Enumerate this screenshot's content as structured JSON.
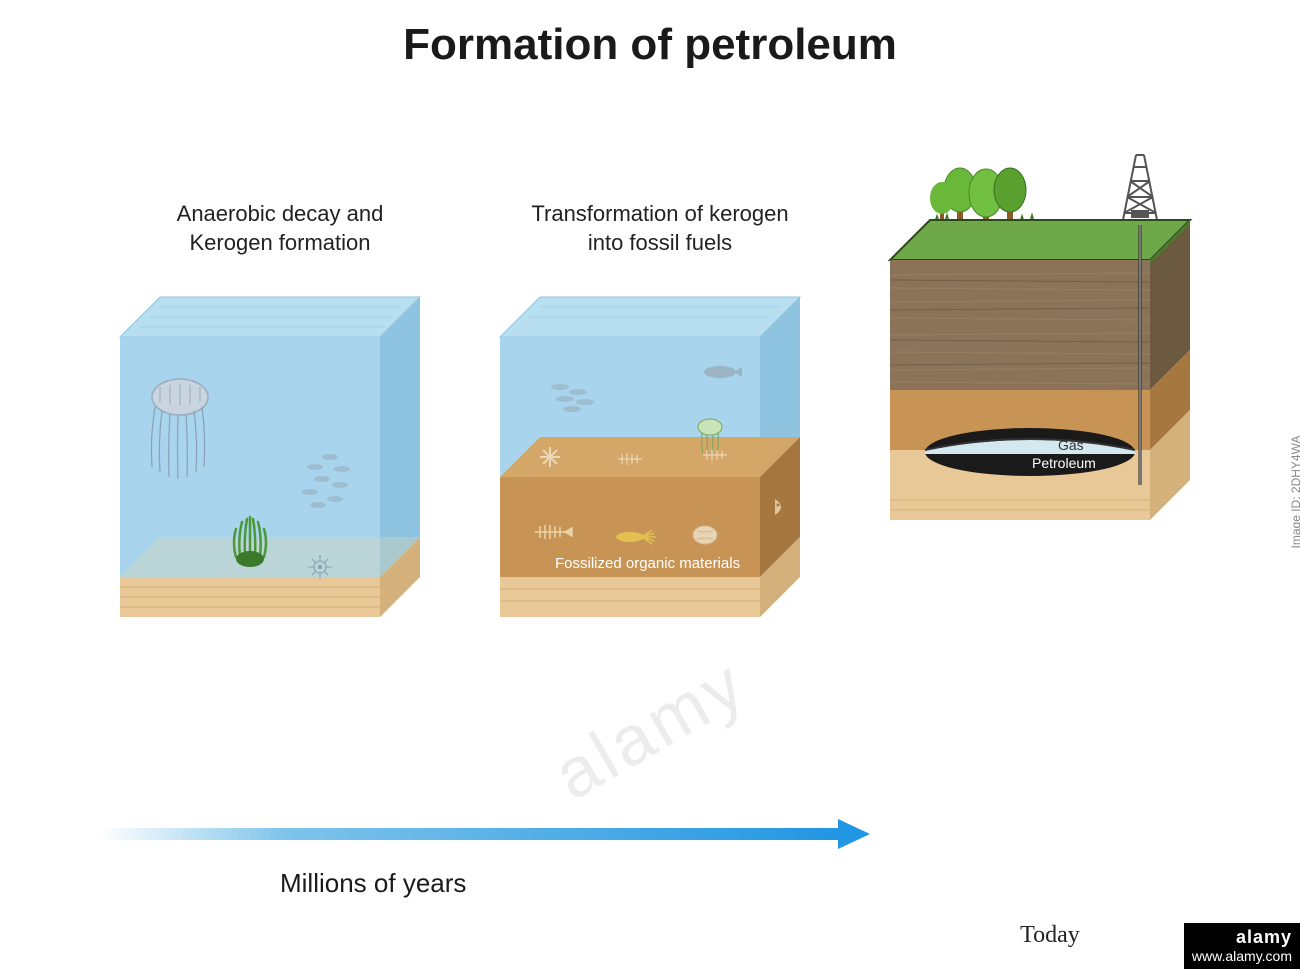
{
  "title": "Formation of petroleum",
  "stages": [
    {
      "label": "Anaerobic decay and\nKerogen formation"
    },
    {
      "label": "Transformation of kerogen\ninto fossil fuels",
      "internal_label": "Fossilized organic materials"
    },
    {
      "label": "Today",
      "gas_label": "Gas",
      "petroleum_label": "Petroleum"
    }
  ],
  "timeline": {
    "label": "Millions of years",
    "arrow_color": "#2196e3"
  },
  "colors": {
    "water": "#a8d4ed",
    "water_dark": "#8fc4e0",
    "sand": "#e8c896",
    "sand_dark": "#d4b07a",
    "sediment": "#c79455",
    "sediment_dark": "#a67840",
    "grass": "#6ea848",
    "grass_dark": "#4a7a2e",
    "rock_brown": "#8a7358",
    "rock_brown_dark": "#6b5940",
    "rock_orange": "#c79455",
    "gas_layer": "#d4e8f0",
    "petroleum_layer": "#1a1a1a",
    "tree_trunk": "#8b5a2b",
    "tree_crown": "#5aa02e",
    "jellyfish": "#b8c8d8",
    "anemone": "#4a9838",
    "fish": "#a0b8c8",
    "derrick": "#555"
  },
  "watermark": {
    "brand": "alamy",
    "site": "www.alamy.com",
    "id": "Image ID: 2DHY4WA"
  }
}
